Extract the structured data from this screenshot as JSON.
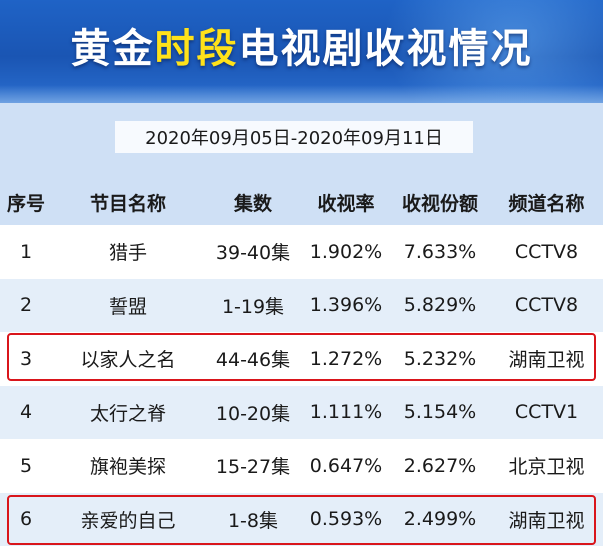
{
  "title": {
    "part1": "黄金",
    "part2": "时段",
    "part3": "电视剧收视情况"
  },
  "date_range": "2020年09月05日-2020年09月11日",
  "table": {
    "headers": [
      "序号",
      "节目名称",
      "集数",
      "收视率",
      "收视份额",
      "频道名称"
    ],
    "rows": [
      [
        "1",
        "猎手",
        "39-40集",
        "1.902%",
        "7.633%",
        "CCTV8"
      ],
      [
        "2",
        "誓盟",
        "1-19集",
        "1.396%",
        "5.829%",
        "CCTV8"
      ],
      [
        "3",
        "以家人之名",
        "44-46集",
        "1.272%",
        "5.232%",
        "湖南卫视"
      ],
      [
        "4",
        "太行之脊",
        "10-20集",
        "1.111%",
        "5.154%",
        "CCTV1"
      ],
      [
        "5",
        "旗袍美探",
        "15-27集",
        "0.647%",
        "2.627%",
        "北京卫视"
      ],
      [
        "6",
        "亲爱的自己",
        "1-8集",
        "0.593%",
        "2.499%",
        "湖南卫视"
      ]
    ],
    "highlighted_rows": [
      "3",
      "6"
    ]
  },
  "colors": {
    "banner": "#1f63c6",
    "title_accent": "#ffe21a",
    "band": "#cfe0f5",
    "row_alt": "#e4eef9",
    "highlight": "#d9151b"
  }
}
